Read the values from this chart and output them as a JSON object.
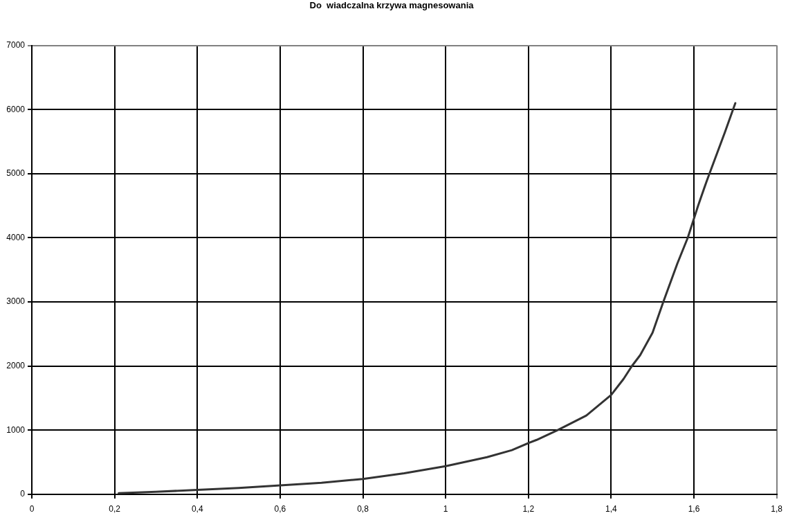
{
  "chart_data": {
    "type": "line",
    "title": "Do  wiadczalna krzywa magnesowania",
    "x": [
      0.21,
      0.3,
      0.4,
      0.5,
      0.6,
      0.7,
      0.8,
      0.9,
      1.0,
      1.1,
      1.16,
      1.2,
      1.22,
      1.27,
      1.34,
      1.4,
      1.43,
      1.45,
      1.47,
      1.5,
      1.526,
      1.56,
      1.585,
      1.61,
      1.63,
      1.675,
      1.7
    ],
    "series": [
      {
        "color": "#333333",
        "values": [
          20,
          40,
          70,
          100,
          140,
          180,
          240,
          330,
          440,
          580,
          690,
          800,
          850,
          1000,
          1230,
          1550,
          1800,
          2000,
          2170,
          2520,
          3000,
          3600,
          4000,
          4500,
          4870,
          5650,
          6100
        ]
      }
    ],
    "xlim": [
      0,
      1.8
    ],
    "xticks": [
      0,
      {
        "value": 0.2,
        "label": "0,2"
      },
      {
        "value": 0.4,
        "label": "0,4"
      },
      {
        "value": 0.6,
        "label": "0,6"
      },
      {
        "value": 0.8,
        "label": "0,8"
      },
      1,
      {
        "value": 1.2,
        "label": "1,2"
      },
      {
        "value": 1.4,
        "label": "1,4"
      },
      {
        "value": 1.6,
        "label": "1,6"
      },
      {
        "value": 1.8,
        "label": "1,8"
      }
    ],
    "ylim": [
      0,
      7000
    ],
    "yticks": [
      0,
      1000,
      2000,
      3000,
      4000,
      5000,
      6000,
      7000
    ],
    "grid": true,
    "legend": false,
    "marker": "none",
    "line_style": "solid"
  }
}
